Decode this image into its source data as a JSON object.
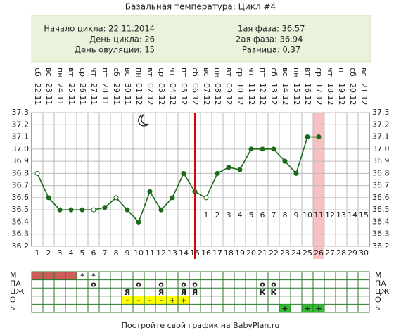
{
  "header": {
    "title": "Базальная температура: Цикл #4"
  },
  "info": {
    "left": [
      "Начало цикла: 22.11.2014",
      "День цикла: 26",
      "День овуляции: 15"
    ],
    "right": [
      "1ая фаза: 36.57",
      "2ая фаза: 36.94",
      "Разница: 0,37"
    ]
  },
  "chart_data": {
    "type": "line",
    "categories": [
      1,
      2,
      3,
      4,
      5,
      6,
      7,
      8,
      9,
      10,
      11,
      12,
      13,
      14,
      15,
      16,
      17,
      18,
      19,
      20,
      21,
      22,
      23,
      24,
      25,
      26,
      27,
      28,
      29,
      30
    ],
    "weekdays": [
      "сб",
      "вс",
      "пн",
      "вт",
      "ср",
      "чт",
      "пт",
      "сб",
      "вс",
      "пн",
      "вт",
      "ср",
      "чт",
      "пт",
      "сб",
      "вс",
      "пн",
      "вт",
      "ср",
      "чт",
      "пт",
      "сб",
      "вс",
      "пн",
      "вт",
      "ср",
      "чт",
      "пт",
      "сб",
      "вс"
    ],
    "dates": [
      "22.11",
      "23.11",
      "24.11",
      "25.11",
      "26.11",
      "27.11",
      "28.11",
      "29.11",
      "30.11",
      "01.12",
      "02.12",
      "03.12",
      "04.12",
      "05.12",
      "06.12",
      "07.12",
      "08.12",
      "09.12",
      "10.12",
      "11.12",
      "12.12",
      "13.12",
      "14.12",
      "15.12",
      "16.12",
      "17.12",
      "18.12",
      "19.12",
      "20.12",
      "21.12"
    ],
    "values": [
      36.8,
      36.6,
      36.5,
      36.5,
      36.5,
      36.5,
      36.52,
      36.6,
      36.5,
      36.4,
      36.65,
      36.5,
      36.6,
      36.8,
      36.65,
      36.6,
      36.8,
      36.85,
      36.83,
      37.0,
      37.0,
      37.0,
      36.9,
      36.8,
      37.1,
      37.1,
      null,
      null,
      null,
      null
    ],
    "color": "#1a6b1a",
    "marker_fills": [
      "#ffffff",
      "#1a6b1a",
      "#1a6b1a",
      "#1a6b1a",
      "#1a6b1a",
      "#ffffff",
      "#1a6b1a",
      "#ffffff",
      "#1a6b1a",
      "#1a6b1a",
      "#1a6b1a",
      "#1a6b1a",
      "#1a6b1a",
      "#1a6b1a",
      "#8b4513",
      "#ffffff",
      "#1a6b1a",
      "#1a6b1a",
      "#1a6b1a",
      "#1a6b1a",
      "#1a6b1a",
      "#1a6b1a",
      "#1a6b1a",
      "#1a6b1a",
      "#1a6b1a",
      "#1a6b1a",
      null,
      null,
      null,
      null
    ],
    "ylim": [
      36.2,
      37.3
    ],
    "yticks": [
      36.2,
      36.3,
      36.4,
      36.5,
      36.6,
      36.7,
      36.8,
      36.9,
      {
        "value": 37.0,
        "label": "37.0"
      },
      37.1,
      37.2,
      37.3
    ],
    "grid": true,
    "ovulation_day": 15,
    "ovulation_color": "#dd0000",
    "highlight_day": 26,
    "highlight_color": "#f8c0c0",
    "phase_days": [
      1,
      2,
      3,
      4,
      5,
      6,
      7,
      8,
      9,
      10,
      11,
      12,
      13,
      14,
      15
    ],
    "phase_day_colors": [
      "#c04040",
      "#c04040",
      "#c04040",
      "#c04040",
      "#c04040",
      "#c04040",
      "#c04040",
      "#c04040",
      "#c04040",
      "#c04040",
      "#c04040",
      "#e0a0a0",
      "#e0a0a0",
      "#e0a0a0",
      "#e0a0a0"
    ]
  },
  "table": {
    "rows": [
      {
        "label": "М",
        "text_color": "#e07080",
        "cells": [
          null,
          null,
          null,
          null,
          "*",
          "*",
          null,
          null,
          null,
          null,
          null,
          null,
          null,
          null,
          null,
          null,
          null,
          null,
          null,
          null,
          null,
          null,
          null,
          null,
          null,
          null,
          null,
          null,
          null,
          null
        ],
        "fills": [
          "#cd5c5c",
          "#cd5c5c",
          "#cd5c5c",
          "#cd5c5c",
          null,
          null,
          null,
          null,
          null,
          null,
          null,
          null,
          null,
          null,
          null,
          null,
          null,
          null,
          null,
          null,
          null,
          null,
          null,
          null,
          null,
          null,
          null,
          null,
          null,
          null
        ]
      },
      {
        "label": "ПА",
        "text_color": "#d06060",
        "cells": [
          null,
          null,
          null,
          null,
          null,
          "о",
          null,
          null,
          null,
          "о",
          null,
          "о",
          null,
          "о",
          "о",
          null,
          null,
          null,
          null,
          null,
          "о",
          "о",
          null,
          null,
          null,
          null,
          null,
          null,
          null,
          null
        ]
      },
      {
        "label": "ЦЖ",
        "text_color": "#000000",
        "cells": [
          null,
          null,
          null,
          null,
          null,
          null,
          null,
          null,
          "Я",
          null,
          null,
          "Я",
          null,
          "Я",
          "Я",
          null,
          null,
          null,
          null,
          null,
          "К",
          "К",
          null,
          null,
          null,
          null,
          null,
          null,
          null,
          null
        ]
      },
      {
        "label": "О",
        "text_color": "#cc0000",
        "cells": [
          null,
          null,
          null,
          null,
          null,
          null,
          null,
          null,
          "-",
          "-",
          "-",
          "-",
          "+",
          "+",
          null,
          null,
          null,
          null,
          null,
          null,
          null,
          null,
          null,
          null,
          null,
          null,
          null,
          null,
          null,
          null
        ],
        "fills": [
          null,
          null,
          null,
          null,
          null,
          null,
          null,
          null,
          "#ffff00",
          "#ffff00",
          "#ffff00",
          "#ffff00",
          "#ffff00",
          "#ffff00",
          null,
          null,
          null,
          null,
          null,
          null,
          null,
          null,
          null,
          null,
          null,
          null,
          null,
          null,
          null,
          null
        ]
      },
      {
        "label": "Б",
        "text_color": "#ffffff",
        "cells": [
          null,
          null,
          null,
          null,
          null,
          null,
          null,
          null,
          null,
          null,
          null,
          null,
          null,
          null,
          null,
          null,
          null,
          null,
          null,
          null,
          null,
          null,
          "+",
          null,
          "+",
          "+",
          null,
          null,
          null,
          null
        ],
        "fills": [
          null,
          null,
          null,
          null,
          null,
          null,
          null,
          null,
          null,
          null,
          null,
          null,
          null,
          null,
          null,
          null,
          null,
          null,
          null,
          null,
          null,
          null,
          "#33bb33",
          null,
          "#33bb33",
          "#33bb33",
          null,
          null,
          null,
          null
        ]
      }
    ]
  },
  "footer": "Постройте свой график на BabyPlan.ru"
}
